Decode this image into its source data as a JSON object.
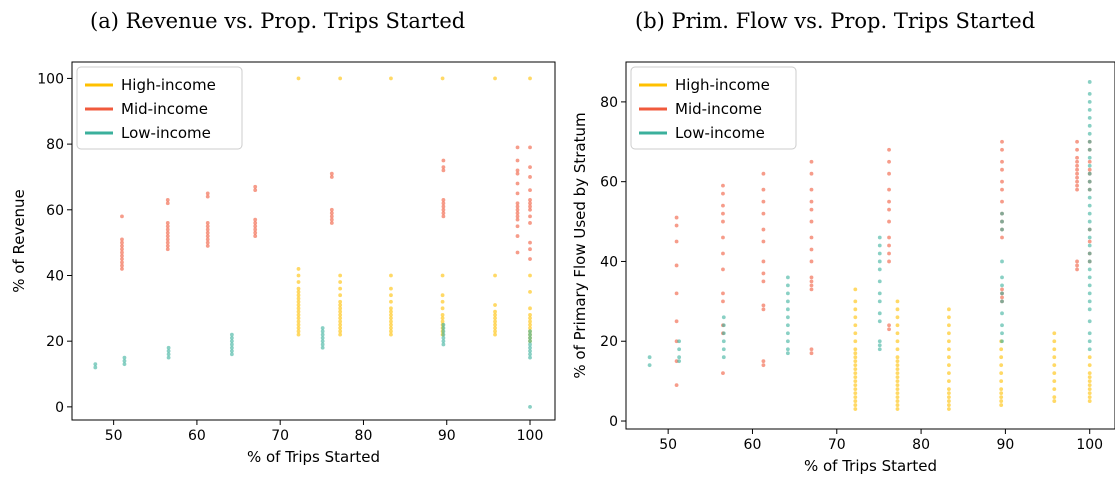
{
  "colors": {
    "high": "#FFC000",
    "mid": "#F05A3C",
    "low": "#3BB09C"
  },
  "chart_data": [
    {
      "type": "scatter",
      "title": "(a) Revenue vs. Prop. Trips Started",
      "xlabel": "% of Trips Started",
      "ylabel": "% of Revenue",
      "xlim": [
        45,
        103
      ],
      "ylim": [
        -4,
        105
      ],
      "xticks": [
        50,
        60,
        70,
        80,
        90,
        100
      ],
      "yticks": [
        0,
        20,
        40,
        60,
        80,
        100
      ],
      "legend": "top-left",
      "series": [
        {
          "name": "High-income",
          "color_key": "high",
          "groups": [
            {
              "x": 72.2,
              "y": [
                22,
                23,
                24,
                25,
                26,
                27,
                28,
                29,
                30,
                31,
                32,
                33,
                34,
                35,
                36,
                38,
                40,
                42,
                100
              ]
            },
            {
              "x": 77.2,
              "y": [
                22,
                23,
                24,
                25,
                26,
                27,
                28,
                29,
                30,
                31,
                32,
                34,
                36,
                38,
                40,
                100
              ]
            },
            {
              "x": 83.3,
              "y": [
                22,
                23,
                24,
                25,
                26,
                27,
                28,
                29,
                30,
                32,
                34,
                36,
                40,
                100
              ]
            },
            {
              "x": 89.5,
              "y": [
                22,
                23,
                24,
                25,
                26,
                27,
                28,
                30,
                32,
                34,
                40,
                100
              ]
            },
            {
              "x": 95.8,
              "y": [
                22,
                23,
                24,
                25,
                26,
                27,
                28,
                29,
                31,
                40,
                100
              ]
            },
            {
              "x": 100,
              "y": [
                20,
                21,
                22,
                23,
                24,
                25,
                26,
                27,
                28,
                30,
                35,
                40,
                100
              ]
            }
          ]
        },
        {
          "name": "Mid-income",
          "color_key": "mid",
          "groups": [
            {
              "x": 51.0,
              "y": [
                42,
                43,
                44,
                45,
                46,
                47,
                48,
                49,
                50,
                51,
                58
              ]
            },
            {
              "x": 56.5,
              "y": [
                48,
                49,
                50,
                51,
                52,
                53,
                54,
                55,
                56,
                62,
                63
              ]
            },
            {
              "x": 61.3,
              "y": [
                49,
                50,
                51,
                52,
                53,
                54,
                55,
                56,
                64,
                65
              ]
            },
            {
              "x": 67.0,
              "y": [
                52,
                53,
                54,
                55,
                56,
                57,
                66,
                67
              ]
            },
            {
              "x": 76.2,
              "y": [
                56,
                57,
                58,
                59,
                60,
                70,
                71
              ]
            },
            {
              "x": 89.6,
              "y": [
                58,
                59,
                60,
                61,
                62,
                63,
                72,
                73,
                75
              ]
            },
            {
              "x": 98.5,
              "y": [
                47,
                52,
                55,
                57,
                58,
                59,
                60,
                61,
                62,
                65,
                68,
                71,
                72,
                75,
                79
              ]
            },
            {
              "x": 100,
              "y": [
                45,
                48,
                50,
                56,
                58,
                60,
                61,
                62,
                63,
                66,
                70,
                73,
                79
              ]
            }
          ]
        },
        {
          "name": "Low-income",
          "color_key": "low",
          "groups": [
            {
              "x": 47.8,
              "y": [
                12,
                13
              ]
            },
            {
              "x": 51.3,
              "y": [
                13,
                14,
                15
              ]
            },
            {
              "x": 56.6,
              "y": [
                15,
                16,
                17,
                18
              ]
            },
            {
              "x": 64.2,
              "y": [
                16,
                17,
                18,
                19,
                20,
                21,
                22
              ]
            },
            {
              "x": 75.1,
              "y": [
                18,
                19,
                20,
                21,
                22,
                23,
                24
              ]
            },
            {
              "x": 89.6,
              "y": [
                19,
                20,
                21,
                22,
                23,
                24,
                25
              ]
            },
            {
              "x": 100,
              "y": [
                0,
                15,
                16,
                17,
                18,
                19,
                20,
                21,
                22,
                23
              ]
            }
          ]
        }
      ]
    },
    {
      "type": "scatter",
      "title": "(b) Prim. Flow vs. Prop. Trips Started",
      "xlabel": "% of Trips Started",
      "ylabel": "% of Primary Flow Used by Stratum",
      "xlim": [
        45,
        103
      ],
      "ylim": [
        -2,
        90
      ],
      "xticks": [
        50,
        60,
        70,
        80,
        90,
        100
      ],
      "yticks": [
        0,
        20,
        40,
        60,
        80
      ],
      "legend": "top-left",
      "series": [
        {
          "name": "High-income",
          "color_key": "high",
          "groups": [
            {
              "x": 72.2,
              "y": [
                3,
                4,
                5,
                6,
                7,
                8,
                9,
                10,
                11,
                12,
                13,
                14,
                15,
                16,
                17,
                18,
                20,
                22,
                24,
                26,
                28,
                30,
                33
              ]
            },
            {
              "x": 77.2,
              "y": [
                3,
                4,
                5,
                6,
                7,
                8,
                9,
                10,
                11,
                12,
                13,
                14,
                15,
                16,
                18,
                20,
                22,
                24,
                26,
                28,
                30
              ]
            },
            {
              "x": 83.3,
              "y": [
                3,
                4,
                5,
                6,
                7,
                8,
                10,
                12,
                14,
                16,
                18,
                20,
                22,
                24,
                26,
                28
              ]
            },
            {
              "x": 89.5,
              "y": [
                4,
                5,
                6,
                7,
                8,
                10,
                12,
                14,
                16,
                18,
                20
              ]
            },
            {
              "x": 95.8,
              "y": [
                5,
                6,
                8,
                10,
                12,
                14,
                16,
                18,
                20,
                22
              ]
            },
            {
              "x": 100,
              "y": [
                5,
                6,
                7,
                8,
                9,
                10,
                11,
                12,
                14,
                16
              ]
            }
          ]
        },
        {
          "name": "Mid-income",
          "color_key": "mid",
          "groups": [
            {
              "x": 51.0,
              "y": [
                9,
                15,
                20,
                25,
                32,
                39,
                45,
                49,
                51
              ]
            },
            {
              "x": 56.5,
              "y": [
                12,
                22,
                24,
                30,
                32,
                38,
                42,
                46,
                50,
                52,
                54,
                57,
                59
              ]
            },
            {
              "x": 61.3,
              "y": [
                14,
                15,
                28,
                29,
                35,
                37,
                40,
                45,
                48,
                52,
                55,
                58,
                62
              ]
            },
            {
              "x": 67.0,
              "y": [
                17,
                18,
                33,
                34,
                35,
                36,
                40,
                43,
                46,
                50,
                53,
                55,
                58,
                62,
                65
              ]
            },
            {
              "x": 76.2,
              "y": [
                23,
                24,
                40,
                42,
                44,
                46,
                50,
                53,
                55,
                58,
                62,
                65,
                68
              ]
            },
            {
              "x": 89.6,
              "y": [
                30,
                31,
                32,
                33,
                46,
                48,
                50,
                52,
                55,
                58,
                60,
                63,
                65,
                68,
                70
              ]
            },
            {
              "x": 98.5,
              "y": [
                38,
                39,
                40,
                58,
                59,
                60,
                61,
                62,
                63,
                64,
                65,
                66,
                68,
                70
              ]
            },
            {
              "x": 100,
              "y": [
                40,
                42,
                45,
                48,
                58,
                60,
                62,
                63,
                65,
                68,
                70
              ]
            }
          ]
        },
        {
          "name": "Low-income",
          "color_key": "low",
          "groups": [
            {
              "x": 47.8,
              "y": [
                14,
                16
              ]
            },
            {
              "x": 51.3,
              "y": [
                15,
                16,
                18,
                20
              ]
            },
            {
              "x": 56.6,
              "y": [
                16,
                18,
                20,
                22,
                24,
                26
              ]
            },
            {
              "x": 64.2,
              "y": [
                17,
                18,
                20,
                22,
                24,
                26,
                28,
                30,
                32,
                34,
                36
              ]
            },
            {
              "x": 75.1,
              "y": [
                18,
                19,
                20,
                25,
                27,
                30,
                32,
                35,
                38,
                40,
                42,
                44,
                46
              ]
            },
            {
              "x": 89.6,
              "y": [
                20,
                22,
                24,
                27,
                30,
                32,
                34,
                36,
                40,
                48,
                50,
                52
              ]
            },
            {
              "x": 100,
              "y": [
                18,
                20,
                22,
                25,
                28,
                30,
                32,
                34,
                36,
                38,
                40,
                42,
                44,
                46,
                48,
                50,
                52,
                54,
                56,
                58,
                60,
                62,
                64,
                66,
                68,
                70,
                72,
                74,
                76,
                78,
                80,
                82,
                85
              ]
            }
          ]
        }
      ]
    }
  ]
}
